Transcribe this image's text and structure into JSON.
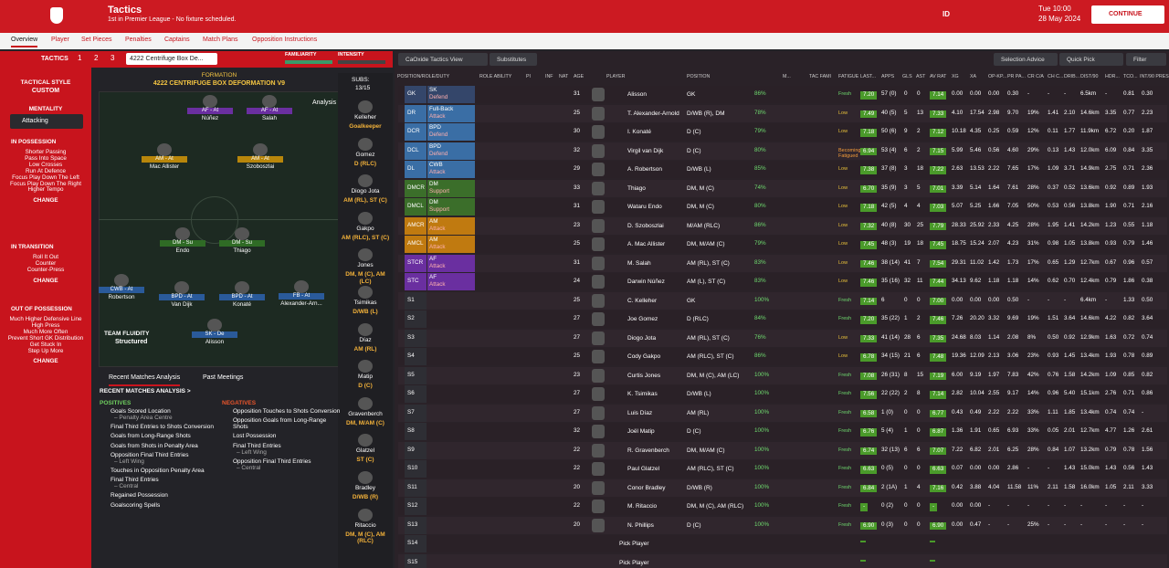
{
  "header": {
    "title": "Tactics",
    "subtitle": "1st in Premier League - No fixture scheduled.",
    "id": "ID",
    "time": "Tue 10:00",
    "date": "28 May 2024",
    "continue": "CONTINUE"
  },
  "tabs": [
    "Overview",
    "Player",
    "Set Pieces",
    "Penalties",
    "Captains",
    "Match Plans",
    "Opposition Instructions"
  ],
  "tactic_bar": {
    "title": "TACTICS",
    "slots": [
      "1",
      "2",
      "3"
    ],
    "tactic": "4222 Centrifuge Box De...",
    "familiarity": "FAMILIARITY",
    "intensity": "INTENSITY"
  },
  "sidebar": {
    "style_label": "TACTICAL STYLE",
    "style": "CUSTOM",
    "mentality_label": "MENTALITY",
    "mentality": "Attacking",
    "sections": [
      {
        "title": "IN POSSESSION",
        "items": [
          "Shorter Passing",
          "Pass Into Space",
          "Low Crosses",
          "Run At Defence",
          "Focus Play Down The Left",
          "Focus Play Down The Right",
          "Higher Tempo"
        ],
        "action": "CHANGE"
      },
      {
        "title": "IN TRANSITION",
        "items": [
          "Roll It Out",
          "Counter",
          "Counter-Press"
        ],
        "action": "CHANGE"
      },
      {
        "title": "OUT OF POSSESSION",
        "items": [
          "Much Higher Defensive Line",
          "High Press",
          "Much More Often",
          "Prevent Short GK Distribution",
          "Get Stuck In",
          "Step Up More"
        ],
        "action": "CHANGE"
      }
    ]
  },
  "pitch": {
    "formation_label": "FORMATION",
    "formation": "4222 CENTRIFUGE BOX DEFORMATION V9",
    "analysis": "Analysis",
    "fluidity_label": "TEAM FLUIDITY",
    "fluidity": "Structured",
    "players": [
      {
        "role": "AF - At",
        "name": "Núñez"
      },
      {
        "role": "AF - At",
        "name": "Salah"
      },
      {
        "role": "AM - At",
        "name": "Mac Allister"
      },
      {
        "role": "AM - At",
        "name": "Szoboszlai"
      },
      {
        "role": "DM - Su",
        "name": "Endo"
      },
      {
        "role": "DM - Su",
        "name": "Thiago"
      },
      {
        "role": "CWB - At",
        "name": "Robertson"
      },
      {
        "role": "BPD - At",
        "name": "Van Dijk"
      },
      {
        "role": "BPD - At",
        "name": "Konaté"
      },
      {
        "role": "FB - At",
        "name": "Alexander-Arn..."
      },
      {
        "role": "SK - De",
        "name": "Alisson"
      }
    ]
  },
  "subs": {
    "label": "SUBS:",
    "count": "13/15",
    "players": [
      {
        "name": "Kelleher",
        "pos": "Goalkeeper"
      },
      {
        "name": "Gomez",
        "pos": "D (RLC)"
      },
      {
        "name": "Diogo Jota",
        "pos": "AM (RL), ST (C)"
      },
      {
        "name": "Gakpo",
        "pos": "AM (RLC), ST (C)"
      },
      {
        "name": "Jones",
        "pos": "DM, M (C), AM (LC)"
      },
      {
        "name": "Tsimikas",
        "pos": "D/WB (L)"
      },
      {
        "name": "Díaz",
        "pos": "AM (RL)"
      },
      {
        "name": "Matip",
        "pos": "D (C)"
      },
      {
        "name": "Gravenberch",
        "pos": "DM, M/AM (C)"
      },
      {
        "name": "Glatzel",
        "pos": "ST (C)"
      },
      {
        "name": "Bradley",
        "pos": "D/WB (R)"
      },
      {
        "name": "Ritaccio",
        "pos": "DM, M (C), AM (RLC)"
      }
    ]
  },
  "analysis": {
    "tabs": [
      "Recent Matches Analysis",
      "Past Meetings"
    ],
    "heading": "RECENT MATCHES ANALYSIS >",
    "positives_title": "POSITIVES",
    "negatives_title": "NEGATIVES",
    "positives": [
      {
        "text": "Goals Scored Location",
        "sub": "– Penalty Area Centre"
      },
      {
        "text": "Final Third Entries to Shots Conversion"
      },
      {
        "text": "Goals from Long-Range Shots"
      },
      {
        "text": "Goals from Shots in Penalty Area"
      },
      {
        "text": "Opposition Final Third Entries",
        "sub": "– Left Wing"
      },
      {
        "text": "Touches in Opposition Penalty Area"
      },
      {
        "text": "Final Third Entries",
        "sub": "– Central"
      },
      {
        "text": "Regained Possession"
      },
      {
        "text": "Goalscoring Spells"
      }
    ],
    "negatives": [
      {
        "text": "Opposition Touches to Shots Conversion"
      },
      {
        "text": "Opposition Goals from Long-Range Shots"
      },
      {
        "text": "Lost Possession"
      },
      {
        "text": "Final Third Entries",
        "sub": "– Left Wing"
      },
      {
        "text": "Opposition Final Third Entries",
        "sub": "– Central"
      }
    ]
  },
  "toolbar": {
    "view": "CaOxide Tactics View",
    "subs": "Substitutes",
    "advice": "Selection Advice",
    "quick": "Quick Pick",
    "filter": "Filter"
  },
  "table": {
    "headers": [
      "POSITION/ROLE/DUTY",
      "ROLE ABILITY",
      "PI",
      "INF",
      "NAT",
      "AGE",
      "PLAYER",
      "POSITION",
      "M...",
      "TAC FAMI",
      "FATIGUE",
      "LAST...",
      "APPS",
      "GLS",
      "AST",
      "AV RAT",
      "XG",
      "XA",
      "OP-KP...",
      "PR PA...",
      "CR C/A",
      "CH C...",
      "DRIB...",
      "DIST/90",
      "HDR...",
      "TCO...",
      "INT/90 PRES..."
    ],
    "rows": [
      [
        "GK",
        "SK",
        "Defend",
        "31",
        "Alisson",
        "GK",
        "86%",
        "Fresh",
        "7.20",
        "57 (0)",
        "0",
        "0",
        "7.14",
        "0.00",
        "0.00",
        "0.00",
        "0.30",
        "-",
        "-",
        "-",
        "6.5km",
        "-",
        "0.81",
        "0.30"
      ],
      [
        "DR",
        "Full-Back",
        "Attack",
        "25",
        "T. Alexander-Arnold",
        "D/WB (R), DM",
        "78%",
        "Low",
        "7.49",
        "40 (5)",
        "5",
        "13",
        "7.33",
        "4.10",
        "17.54",
        "2.98",
        "9.70",
        "19%",
        "1.41",
        "2.10",
        "14.6km",
        "3.35",
        "0.77",
        "2.23"
      ],
      [
        "DCR",
        "BPD",
        "Defend",
        "30",
        "I. Konaté",
        "D (C)",
        "79%",
        "Low",
        "7.18",
        "50 (6)",
        "9",
        "2",
        "7.12",
        "10.18",
        "4.35",
        "0.25",
        "0.59",
        "12%",
        "0.11",
        "1.77",
        "11.9km",
        "6.72",
        "0.20",
        "1.87"
      ],
      [
        "DCL",
        "BPD",
        "Defend",
        "32",
        "Virgil van Dijk",
        "D (C)",
        "80%",
        "Becoming Fatigued",
        "6.94",
        "53 (4)",
        "6",
        "2",
        "7.15",
        "5.99",
        "5.46",
        "0.56",
        "4.60",
        "29%",
        "0.13",
        "1.43",
        "12.0km",
        "6.09",
        "0.84",
        "3.35"
      ],
      [
        "DL",
        "CWB",
        "Attack",
        "29",
        "A. Robertson",
        "D/WB (L)",
        "85%",
        "Low",
        "7.38",
        "37 (8)",
        "3",
        "18",
        "7.22",
        "2.63",
        "13.53",
        "2.22",
        "7.65",
        "17%",
        "1.09",
        "3.71",
        "14.9km",
        "2.75",
        "0.71",
        "2.36"
      ],
      [
        "DMCR",
        "DM",
        "Support",
        "33",
        "Thiago",
        "DM, M (C)",
        "74%",
        "Low",
        "6.70",
        "35 (9)",
        "3",
        "5",
        "7.01",
        "3.39",
        "5.14",
        "1.64",
        "7.61",
        "28%",
        "0.37",
        "0.52",
        "13.6km",
        "0.92",
        "0.89",
        "1.93"
      ],
      [
        "DMCL",
        "DM",
        "Support",
        "31",
        "Wataru Endo",
        "DM, M (C)",
        "80%",
        "Low",
        "7.18",
        "42 (5)",
        "4",
        "4",
        "7.03",
        "5.07",
        "5.25",
        "1.66",
        "7.05",
        "50%",
        "0.53",
        "0.56",
        "13.8km",
        "1.90",
        "0.71",
        "2.16"
      ],
      [
        "AMCR",
        "AM",
        "Attack",
        "23",
        "D. Szoboszlai",
        "M/AM (RLC)",
        "86%",
        "Low",
        "7.32",
        "40 (8)",
        "30",
        "25",
        "7.79",
        "28.33",
        "25.92",
        "2.33",
        "4.25",
        "28%",
        "1.95",
        "1.41",
        "14.2km",
        "1.23",
        "0.55",
        "1.18"
      ],
      [
        "AMCL",
        "AM",
        "Attack",
        "25",
        "A. Mac Allister",
        "DM, M/AM (C)",
        "79%",
        "Low",
        "7.45",
        "48 (3)",
        "19",
        "18",
        "7.45",
        "18.75",
        "15.24",
        "2.07",
        "4.23",
        "31%",
        "0.98",
        "1.05",
        "13.8km",
        "0.93",
        "0.79",
        "1.46"
      ],
      [
        "STCR",
        "AF",
        "Attack",
        "31",
        "M. Salah",
        "AM (RL), ST (C)",
        "83%",
        "Low",
        "7.46",
        "38 (14)",
        "41",
        "7",
        "7.54",
        "29.31",
        "11.02",
        "1.42",
        "1.73",
        "17%",
        "0.65",
        "1.29",
        "12.7km",
        "0.67",
        "0.96",
        "0.57"
      ],
      [
        "STC",
        "AF",
        "Attack",
        "24",
        "Darwin Núñez",
        "AM (L), ST (C)",
        "83%",
        "Low",
        "7.46",
        "35 (16)",
        "32",
        "11",
        "7.44",
        "34.13",
        "9.62",
        "1.18",
        "1.18",
        "14%",
        "0.62",
        "0.70",
        "12.4km",
        "0.79",
        "1.86",
        "0.38"
      ],
      [
        "S1",
        "",
        "",
        "25",
        "C. Kelleher",
        "GK",
        "100%",
        "Fresh",
        "7.14",
        "6",
        "0",
        "0",
        "7.00",
        "0.00",
        "0.00",
        "0.00",
        "0.50",
        "-",
        "-",
        "-",
        "6.4km",
        "-",
        "1.33",
        "0.50"
      ],
      [
        "S2",
        "",
        "",
        "27",
        "Joe Gomez",
        "D (RLC)",
        "84%",
        "Fresh",
        "7.20",
        "35 (22)",
        "1",
        "2",
        "7.46",
        "7.26",
        "20.20",
        "3.32",
        "9.69",
        "19%",
        "1.51",
        "3.64",
        "14.6km",
        "4.22",
        "0.82",
        "3.64"
      ],
      [
        "S3",
        "",
        "",
        "27",
        "Diogo Jota",
        "AM (RL), ST (C)",
        "76%",
        "Low",
        "7.33",
        "41 (14)",
        "28",
        "6",
        "7.35",
        "24.68",
        "8.03",
        "1.14",
        "2.08",
        "8%",
        "0.50",
        "0.92",
        "12.9km",
        "1.63",
        "0.72",
        "0.74"
      ],
      [
        "S4",
        "",
        "",
        "25",
        "Cody Gakpo",
        "AM (RLC), ST (C)",
        "86%",
        "Low",
        "6.78",
        "34 (15)",
        "21",
        "6",
        "7.48",
        "19.36",
        "12.09",
        "2.13",
        "3.06",
        "23%",
        "0.93",
        "1.45",
        "13.4km",
        "1.93",
        "0.78",
        "0.89"
      ],
      [
        "S5",
        "",
        "",
        "23",
        "Curtis Jones",
        "DM, M (C), AM (LC)",
        "100%",
        "Fresh",
        "7.08",
        "26 (31)",
        "8",
        "15",
        "7.19",
        "6.00",
        "9.19",
        "1.97",
        "7.83",
        "42%",
        "0.76",
        "1.58",
        "14.2km",
        "1.09",
        "0.85",
        "0.82"
      ],
      [
        "S6",
        "",
        "",
        "27",
        "K. Tsimikas",
        "D/WB (L)",
        "100%",
        "Fresh",
        "7.56",
        "22 (22)",
        "2",
        "8",
        "7.14",
        "2.82",
        "10.04",
        "2.55",
        "9.17",
        "14%",
        "0.96",
        "5.40",
        "15.1km",
        "2.76",
        "0.71",
        "0.86"
      ],
      [
        "S7",
        "",
        "",
        "27",
        "Luis Díaz",
        "AM (RL)",
        "100%",
        "Fresh",
        "6.58",
        "1 (0)",
        "0",
        "0",
        "6.77",
        "0.43",
        "0.49",
        "2.22",
        "2.22",
        "33%",
        "1.11",
        "1.85",
        "13.4km",
        "0.74",
        "0.74",
        "-"
      ],
      [
        "S8",
        "",
        "",
        "32",
        "Joël Matip",
        "D (C)",
        "100%",
        "Fresh",
        "6.76",
        "5 (4)",
        "1",
        "0",
        "6.87",
        "1.36",
        "1.91",
        "0.65",
        "6.93",
        "33%",
        "0.05",
        "2.01",
        "12.7km",
        "4.77",
        "1.26",
        "2.61"
      ],
      [
        "S9",
        "",
        "",
        "22",
        "R. Gravenberch",
        "DM, M/AM (C)",
        "100%",
        "Fresh",
        "6.74",
        "32 (13)",
        "6",
        "6",
        "7.07",
        "7.22",
        "6.82",
        "2.01",
        "6.25",
        "28%",
        "0.84",
        "1.07",
        "13.2km",
        "0.79",
        "0.78",
        "1.56"
      ],
      [
        "S10",
        "",
        "",
        "22",
        "Paul Glatzel",
        "AM (RLC), ST (C)",
        "100%",
        "Fresh",
        "6.63",
        "0 (5)",
        "0",
        "0",
        "6.63",
        "0.07",
        "0.00",
        "0.00",
        "2.86",
        "-",
        "-",
        "1.43",
        "15.0km",
        "1.43",
        "0.56",
        "1.43"
      ],
      [
        "S11",
        "",
        "",
        "20",
        "Conor Bradley",
        "D/WB (R)",
        "100%",
        "Fresh",
        "6.84",
        "2 (1A)",
        "1",
        "4",
        "7.16",
        "0.42",
        "3.88",
        "4.04",
        "11.58",
        "11%",
        "2.11",
        "1.58",
        "16.0km",
        "1.05",
        "2.11",
        "3.33"
      ],
      [
        "S12",
        "",
        "",
        "22",
        "M. Ritaccio",
        "DM, M (C), AM (RLC)",
        "100%",
        "Fresh",
        "-",
        "0 (2)",
        "0",
        "0",
        "-",
        "0.00",
        "0.00",
        "-",
        "-",
        "-",
        "-",
        "-",
        "-",
        "-",
        "-",
        "-"
      ],
      [
        "S13",
        "",
        "",
        "20",
        "N. Phillips",
        "D (C)",
        "100%",
        "Fresh",
        "6.90",
        "0 (3)",
        "0",
        "0",
        "6.90",
        "0.00",
        "0.47",
        "-",
        "-",
        "25%",
        "-",
        "-",
        "-",
        "-",
        "-",
        "-"
      ],
      [
        "S14",
        "",
        "",
        "",
        "Pick Player",
        "",
        "",
        "",
        "",
        "",
        "",
        "",
        "",
        "",
        "",
        "",
        "",
        "",
        "",
        "",
        "",
        "",
        "",
        ""
      ],
      [
        "S15",
        "",
        "",
        "",
        "Pick Player",
        "",
        "",
        "",
        "",
        "",
        "",
        "",
        "",
        "",
        "",
        "",
        "",
        "",
        "",
        "",
        "",
        "",
        "",
        ""
      ]
    ]
  }
}
